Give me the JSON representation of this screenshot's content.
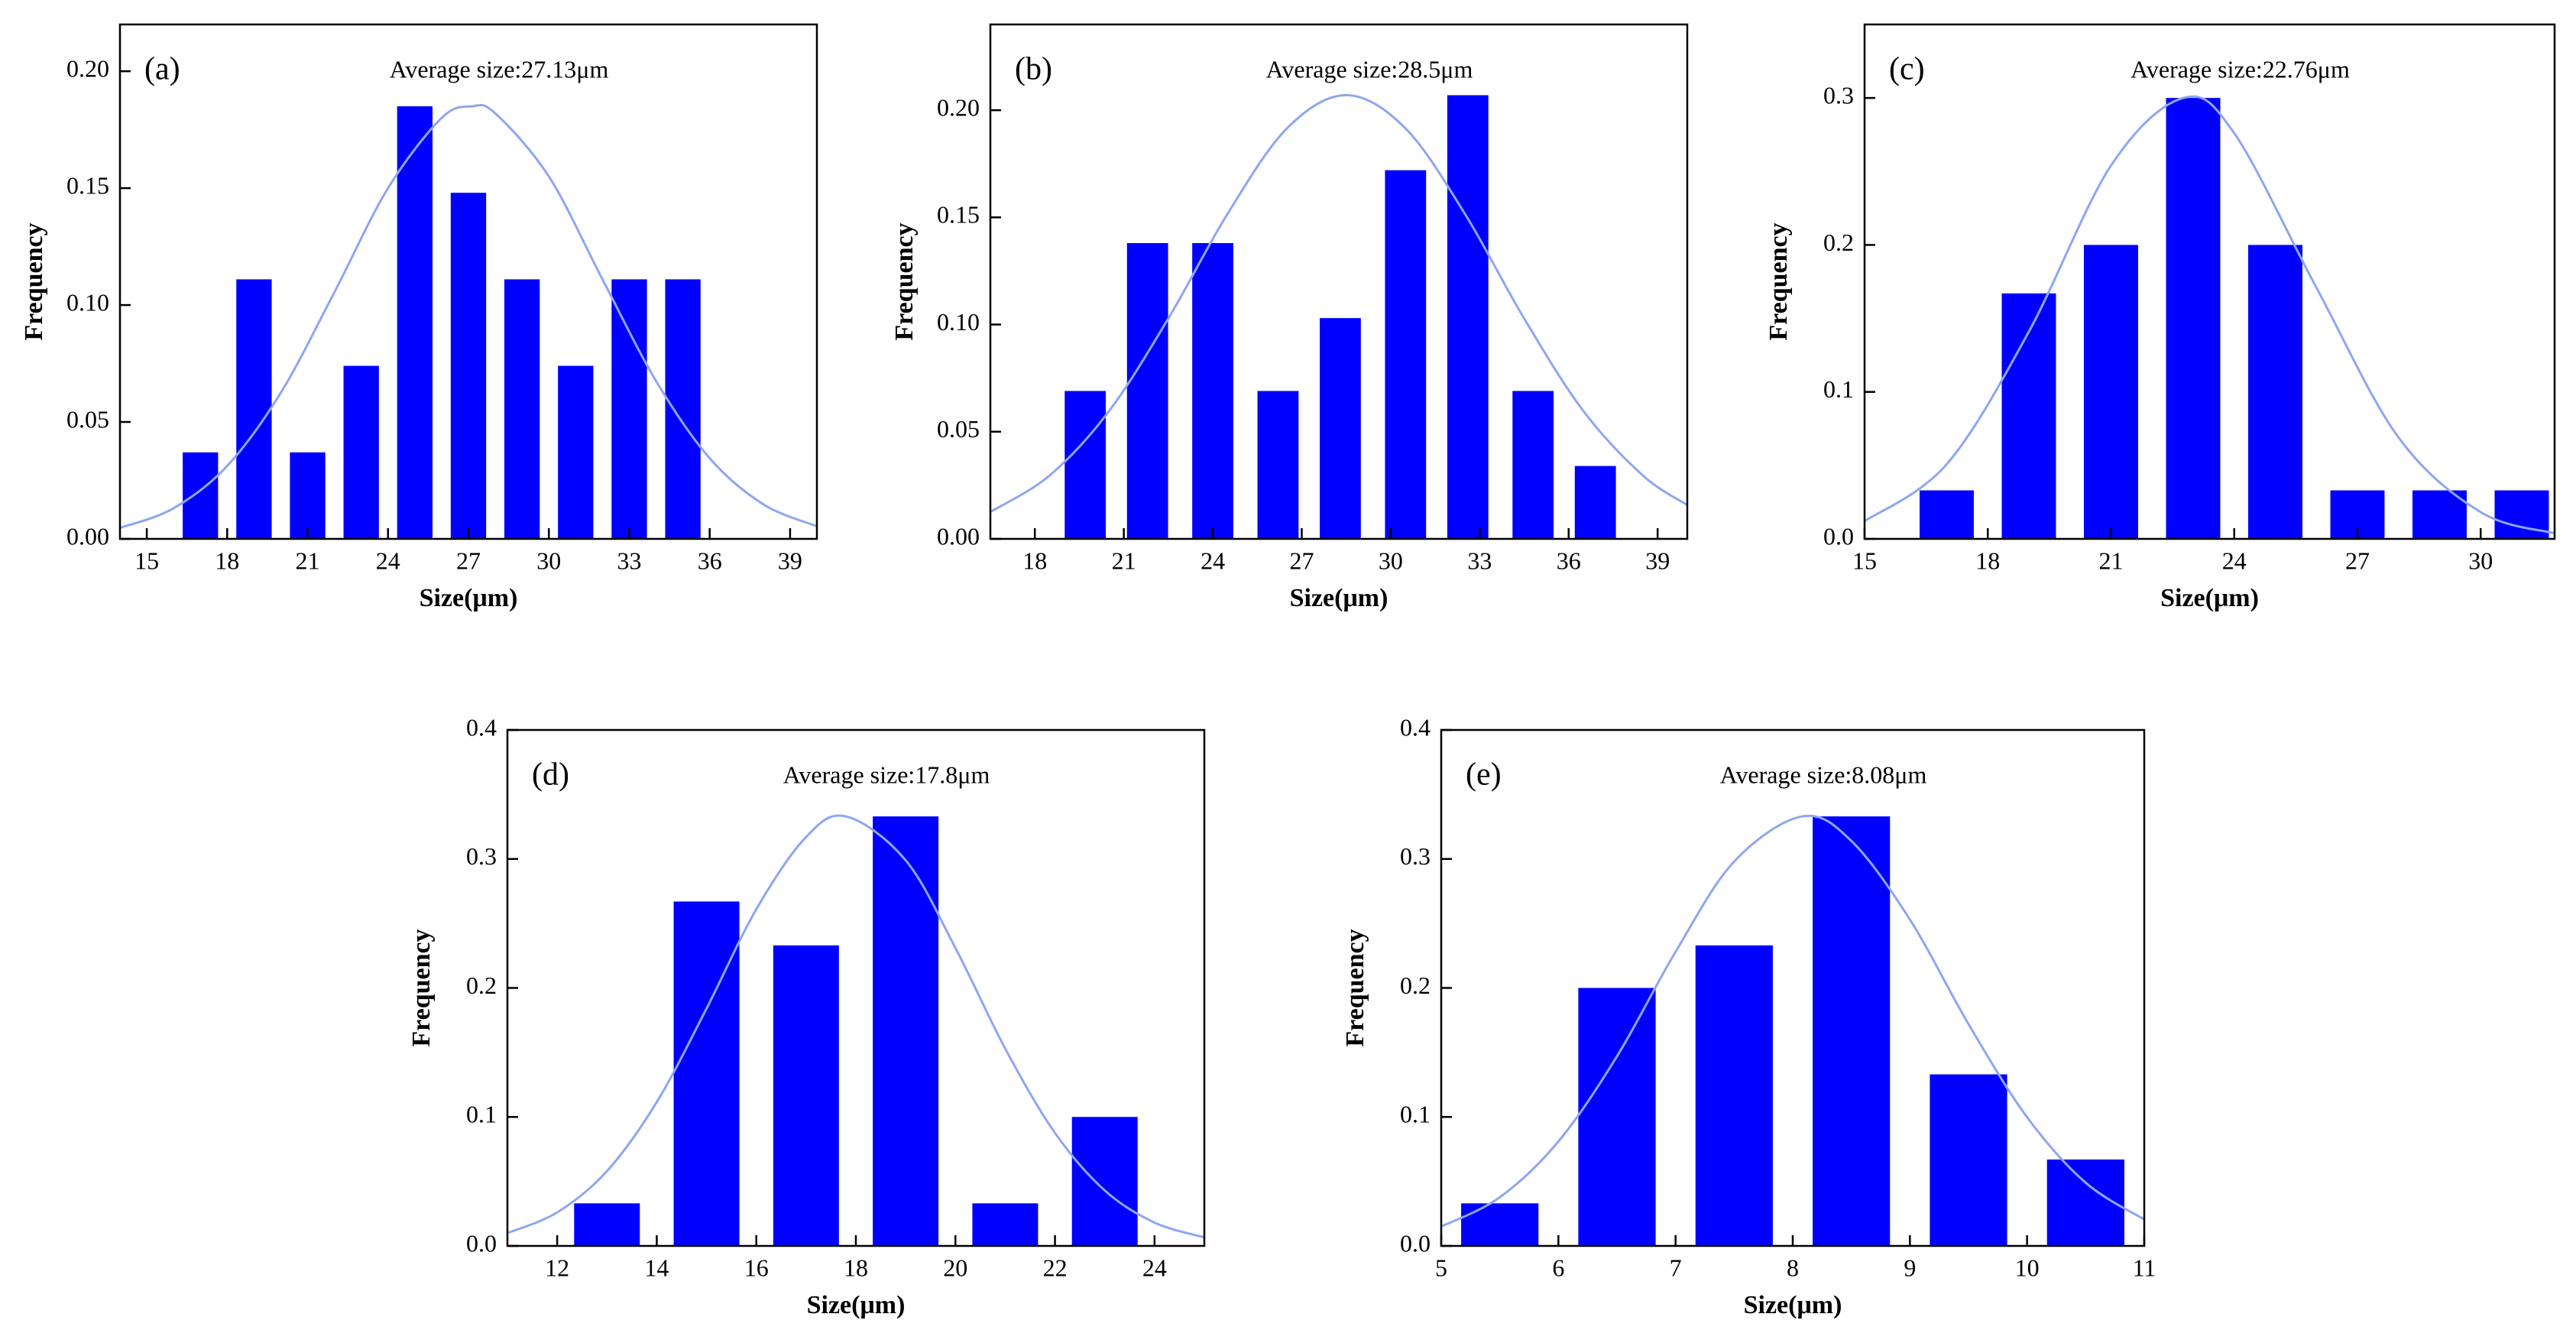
{
  "chart_data": [
    {
      "type": "bar",
      "label": "(a)",
      "title": "Average size:27.13μm",
      "x_label": "Size(μm)",
      "y_label": "Frequency",
      "color": "#0000ff",
      "x": [
        17,
        19,
        21,
        23,
        25,
        27,
        29,
        31,
        33,
        35
      ],
      "values": [
        0.037,
        0.111,
        0.037,
        0.074,
        0.185,
        0.148,
        0.111,
        0.074,
        0.111,
        0.111
      ],
      "fit": {
        "color": "#8ea6f2",
        "x": [
          14,
          16,
          18,
          20,
          22,
          24,
          26,
          27.13,
          28,
          30,
          32,
          34,
          36,
          38,
          40
        ],
        "values": [
          0.0047,
          0.0131,
          0.0312,
          0.0625,
          0.1055,
          0.15,
          0.18,
          0.185,
          0.182,
          0.155,
          0.111,
          0.0675,
          0.0345,
          0.0148,
          0.0054
        ]
      },
      "xlim": [
        14,
        40
      ],
      "xticks": [
        15,
        18,
        21,
        24,
        27,
        30,
        33,
        36,
        39
      ],
      "ylim": [
        0,
        0.22
      ],
      "yticks": [
        {
          "value": 0,
          "label": "0.00"
        },
        {
          "value": 0.05,
          "label": "0.05"
        },
        {
          "value": 0.1,
          "label": "0.10"
        },
        {
          "value": 0.15,
          "label": "0.15"
        },
        {
          "value": 0.2,
          "label": "0.20"
        }
      ]
    },
    {
      "type": "bar",
      "label": "(b)",
      "title": "Average size:28.5μm",
      "x_label": "Size(μm)",
      "y_label": "Frequency",
      "color": "#0000ff",
      "x": [
        19.7,
        21.8,
        24.0,
        26.2,
        28.3,
        30.5,
        32.6,
        34.8,
        36.9
      ],
      "values": [
        0.069,
        0.138,
        0.138,
        0.069,
        0.103,
        0.172,
        0.207,
        0.069,
        0.034
      ],
      "fit": {
        "color": "#8ea6f2",
        "x": [
          16.5,
          18.5,
          20.5,
          22.5,
          24.5,
          26.5,
          28.5,
          30.5,
          32.5,
          34.5,
          36.5,
          38.5,
          40
        ],
        "values": [
          0.0126,
          0.0296,
          0.0596,
          0.1028,
          0.1517,
          0.1915,
          0.207,
          0.1915,
          0.1517,
          0.1028,
          0.0596,
          0.0296,
          0.0158
        ]
      },
      "xlim": [
        16.5,
        40
      ],
      "xticks": [
        18,
        21,
        24,
        27,
        30,
        33,
        36,
        39
      ],
      "ylim": [
        0,
        0.24
      ],
      "yticks": [
        {
          "value": 0,
          "label": "0.00"
        },
        {
          "value": 0.05,
          "label": "0.05"
        },
        {
          "value": 0.1,
          "label": "0.10"
        },
        {
          "value": 0.15,
          "label": "0.15"
        },
        {
          "value": 0.2,
          "label": "0.20"
        }
      ]
    },
    {
      "type": "bar",
      "label": "(c)",
      "title": "Average size:22.76μm",
      "x_label": "Size(μm)",
      "y_label": "Frequency",
      "color": "#0000ff",
      "x": [
        17,
        19,
        21,
        23,
        25,
        27,
        29,
        31
      ],
      "values": [
        0.033,
        0.167,
        0.2,
        0.3,
        0.2,
        0.033,
        0.033,
        0.033
      ],
      "fit": {
        "color": "#8ea6f2",
        "x": [
          15,
          17,
          19,
          21,
          22.76,
          24,
          26,
          28,
          30,
          31.8
        ],
        "values": [
          0.012,
          0.0508,
          0.141,
          0.254,
          0.3,
          0.276,
          0.171,
          0.069,
          0.0182,
          0.0038
        ]
      },
      "xlim": [
        15,
        31.8
      ],
      "xticks": [
        15,
        18,
        21,
        24,
        27,
        30
      ],
      "ylim": [
        0,
        0.35
      ],
      "yticks": [
        {
          "value": 0,
          "label": "0.0"
        },
        0.1,
        0.2,
        0.3
      ]
    },
    {
      "type": "bar",
      "label": "(d)",
      "title": "Average size:17.8μm",
      "x_label": "Size(μm)",
      "y_label": "Frequency",
      "color": "#0000ff",
      "x": [
        13,
        15,
        17,
        19,
        21,
        23
      ],
      "values": [
        0.033,
        0.267,
        0.233,
        0.333,
        0.033,
        0.1
      ],
      "fit": {
        "color": "#8ea6f2",
        "x": [
          11,
          12,
          13,
          14,
          15,
          16,
          17,
          17.8,
          19,
          20,
          21,
          22,
          23,
          24,
          25
        ],
        "values": [
          0.01,
          0.026,
          0.058,
          0.1115,
          0.184,
          0.261,
          0.317,
          0.333,
          0.299,
          0.231,
          0.153,
          0.0876,
          0.043,
          0.0181,
          0.0066
        ]
      },
      "xlim": [
        11,
        25
      ],
      "xticks": [
        12,
        14,
        16,
        18,
        20,
        22,
        24
      ],
      "ylim": [
        0,
        0.4
      ],
      "yticks": [
        {
          "value": 0,
          "label": "0.0"
        },
        0.1,
        0.2,
        0.3,
        0.4
      ]
    },
    {
      "type": "bar",
      "label": "(e)",
      "title": "Average size:8.08μm",
      "x_label": "Size(μm)",
      "y_label": "Frequency",
      "color": "#0000ff",
      "x": [
        5.5,
        6.5,
        7.5,
        8.5,
        9.5,
        10.5
      ],
      "values": [
        0.033,
        0.2,
        0.233,
        0.333,
        0.133,
        0.067
      ],
      "fit": {
        "color": "#8ea6f2",
        "x": [
          5,
          5.5,
          6,
          6.5,
          7,
          7.5,
          8.08,
          8.5,
          9,
          9.5,
          10,
          10.5,
          11
        ],
        "values": [
          0.015,
          0.0377,
          0.081,
          0.147,
          0.228,
          0.298,
          0.333,
          0.314,
          0.253,
          0.172,
          0.0998,
          0.049,
          0.0205
        ]
      },
      "xlim": [
        5,
        11
      ],
      "xticks": [
        5,
        6,
        7,
        8,
        9,
        10,
        11
      ],
      "ylim": [
        0,
        0.4
      ],
      "yticks": [
        {
          "value": 0,
          "label": "0.0"
        },
        0.1,
        0.2,
        0.3,
        0.4
      ]
    }
  ]
}
